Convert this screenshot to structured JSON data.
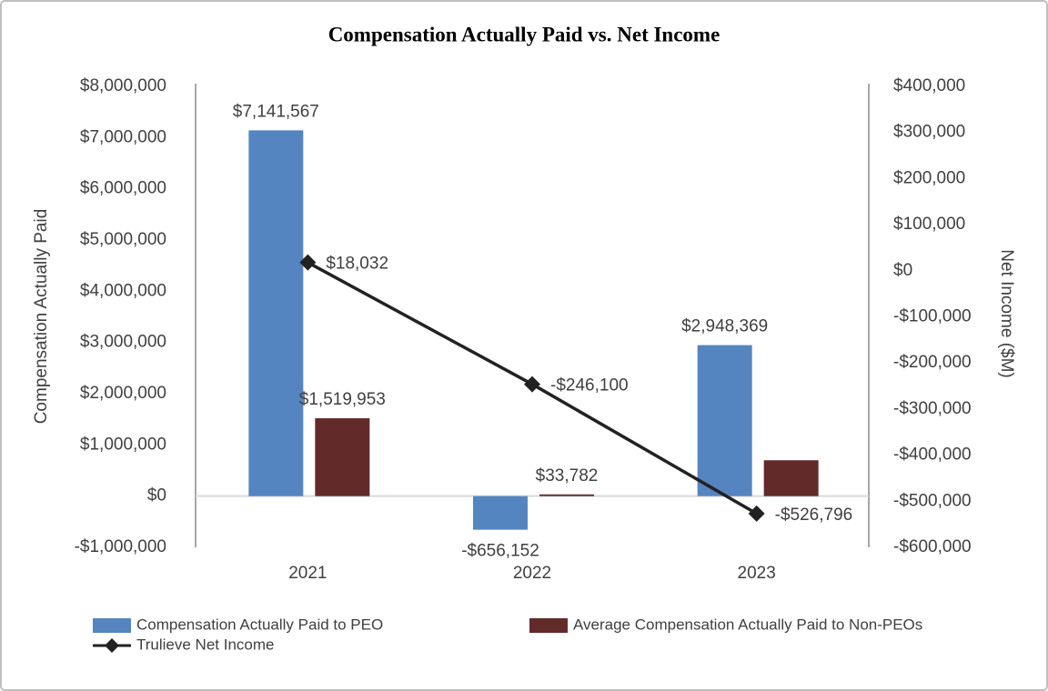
{
  "chart_data": {
    "type": "bar",
    "title": "Compensation Actually Paid vs. Net Income",
    "y_label": "Compensation Actually Paid",
    "y2_label": "Net Income ($M)",
    "categories": [
      "2021",
      "2022",
      "2023"
    ],
    "series": [
      {
        "name": "Compensation Actually Paid to PEO",
        "type": "bar",
        "color": "#5585c0",
        "values": [
          7141567,
          -656152,
          2948369
        ],
        "value_labels": [
          "$7,141,567",
          "-$656,152",
          "$2,948,369"
        ]
      },
      {
        "name": "Average Compensation Actually Paid to Non-PEOs",
        "type": "bar",
        "color": "#632a2a",
        "values": [
          1519953,
          33782,
          700000
        ],
        "value_labels": [
          "$1,519,953",
          "$33,782",
          null
        ]
      },
      {
        "name": "Trulieve Net Income",
        "type": "line",
        "axis": "y2",
        "color": "#222222",
        "values": [
          18032,
          -246100,
          -526796
        ],
        "value_labels": [
          "$18,032",
          "-$246,100",
          "-$526,796"
        ]
      }
    ],
    "ylim": [
      -1000000,
      8000000
    ],
    "yticks": [
      {
        "value": -1000000,
        "label": "-$1,000,000"
      },
      {
        "value": 0,
        "label": "$0"
      },
      {
        "value": 1000000,
        "label": "$1,000,000"
      },
      {
        "value": 2000000,
        "label": "$2,000,000"
      },
      {
        "value": 3000000,
        "label": "$3,000,000"
      },
      {
        "value": 4000000,
        "label": "$4,000,000"
      },
      {
        "value": 5000000,
        "label": "$5,000,000"
      },
      {
        "value": 6000000,
        "label": "$6,000,000"
      },
      {
        "value": 7000000,
        "label": "$7,000,000"
      },
      {
        "value": 8000000,
        "label": "$8,000,000"
      }
    ],
    "y2lim": [
      -600000,
      400000
    ],
    "y2ticks": [
      {
        "value": -600000,
        "label": "-$600,000"
      },
      {
        "value": -500000,
        "label": "-$500,000"
      },
      {
        "value": -400000,
        "label": "-$400,000"
      },
      {
        "value": -300000,
        "label": "-$300,000"
      },
      {
        "value": -200000,
        "label": "-$200,000"
      },
      {
        "value": -100000,
        "label": "-$100,000"
      },
      {
        "value": 0,
        "label": "$0"
      },
      {
        "value": 100000,
        "label": "$100,000"
      },
      {
        "value": 200000,
        "label": "$200,000"
      },
      {
        "value": 300000,
        "label": "$300,000"
      },
      {
        "value": 400000,
        "label": "$400,000"
      }
    ],
    "legend": "bottom"
  }
}
